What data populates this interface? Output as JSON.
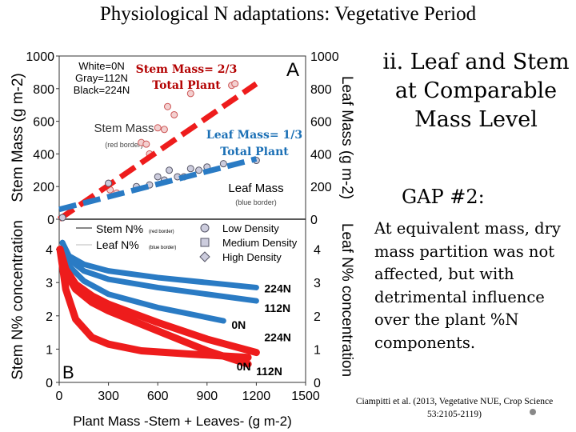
{
  "title": "Physiological N adaptations: Vegetative Period",
  "subtitle": "ii. Leaf and Stem at Comparable Mass Level",
  "gap_label": "GAP #2:",
  "body": "At equivalent mass, dry mass partition was not affected, but with detrimental influence over the plant %N components.",
  "citation": "Ciampitti et al. (2013, Vegetative NUE, Crop Science 53:2105-2119)",
  "colors": {
    "stem": "#ee1c1c",
    "leaf": "#2a7bc4",
    "annot_stem": "#b30000",
    "annot_leaf": "#1a6fb5"
  },
  "chart_data": [
    {
      "type": "scatter",
      "panel_label": "A",
      "xlim": [
        0,
        1500
      ],
      "ylabel": "Stem Mass (g m-2)",
      "ylabel2": "Leaf Mass (g m-2)",
      "ylim": [
        0,
        1000
      ],
      "yticks": [
        0,
        200,
        400,
        600,
        800,
        1000
      ],
      "legend": [
        "White=0N",
        "Gray=112N",
        "Black=224N"
      ],
      "annotations": {
        "stem_text": "Stem Mass",
        "stem_sub": "(red border)",
        "leaf_text": "Leaf Mass",
        "leaf_sub": "(blue border)",
        "stem_frac": "Stem Mass= 2/3",
        "stem_frac2": "Total Plant",
        "leaf_frac": "Leaf Mass= 1/3",
        "leaf_frac2": "Total Plant"
      },
      "series": [
        {
          "name": "Stem Mass",
          "x": [
            0,
            1200
          ],
          "y": [
            0,
            830
          ],
          "points": [
            [
              20,
              10
            ],
            [
              300,
              220
            ],
            [
              310,
              180
            ],
            [
              500,
              470
            ],
            [
              530,
              460
            ],
            [
              600,
              560
            ],
            [
              640,
              550
            ],
            [
              660,
              690
            ],
            [
              700,
              640
            ],
            [
              800,
              770
            ],
            [
              1050,
              820
            ],
            [
              1070,
              830
            ],
            [
              550,
              400
            ],
            [
              350,
              160
            ]
          ]
        },
        {
          "name": "Leaf Mass",
          "x": [
            0,
            1200
          ],
          "y": [
            60,
            370
          ],
          "points": [
            [
              20,
              10
            ],
            [
              300,
              220
            ],
            [
              470,
              200
            ],
            [
              550,
              210
            ],
            [
              600,
              260
            ],
            [
              640,
              240
            ],
            [
              670,
              300
            ],
            [
              720,
              260
            ],
            [
              760,
              260
            ],
            [
              800,
              310
            ],
            [
              850,
              300
            ],
            [
              900,
              320
            ],
            [
              1000,
              340
            ],
            [
              1200,
              360
            ]
          ]
        }
      ]
    },
    {
      "type": "line",
      "panel_label": "B",
      "xlabel": "Plant Mass -Stem + Leaves- (g m-2)",
      "ylabel": "Stem N% concentration",
      "ylabel2": "Leaf N% concentration",
      "xlim": [
        0,
        1500
      ],
      "xticks": [
        0,
        300,
        600,
        900,
        1200,
        1500
      ],
      "ylim": [
        0,
        5
      ],
      "yticks": [
        0,
        1,
        2,
        3,
        4
      ],
      "legend": [
        "Stem N%",
        "Leaf N%",
        "Low Density",
        "Medium Density",
        "High Density"
      ],
      "legend_sub": [
        "(red border)",
        "(blue border)"
      ],
      "series": [
        {
          "name": "224N",
          "group": "leaf",
          "x": [
            20,
            60,
            150,
            300,
            600,
            900,
            1200
          ],
          "y": [
            4.2,
            3.8,
            3.55,
            3.35,
            3.15,
            3.0,
            2.85
          ]
        },
        {
          "name": "112N",
          "group": "leaf",
          "x": [
            20,
            60,
            150,
            300,
            600,
            900,
            1200
          ],
          "y": [
            4.2,
            3.7,
            3.35,
            3.1,
            2.85,
            2.65,
            2.45
          ]
        },
        {
          "name": "0N",
          "group": "leaf",
          "x": [
            20,
            60,
            150,
            300,
            600,
            800,
            1000
          ],
          "y": [
            4.2,
            3.5,
            3.05,
            2.65,
            2.25,
            2.05,
            1.85
          ]
        },
        {
          "name": "224N",
          "group": "stem",
          "x": [
            5,
            40,
            100,
            200,
            300,
            600,
            900,
            1200
          ],
          "y": [
            4.0,
            3.4,
            2.95,
            2.6,
            2.35,
            1.8,
            1.3,
            0.9
          ]
        },
        {
          "name": "112N",
          "group": "stem",
          "x": [
            5,
            40,
            100,
            200,
            300,
            600,
            900,
            1150
          ],
          "y": [
            4.0,
            3.3,
            2.8,
            2.4,
            2.15,
            1.55,
            0.95,
            0.55
          ]
        },
        {
          "name": "0N",
          "group": "stem",
          "x": [
            5,
            40,
            100,
            200,
            300,
            500,
            800,
            1150
          ],
          "y": [
            4.0,
            2.8,
            1.9,
            1.35,
            1.15,
            0.95,
            0.85,
            0.75
          ]
        }
      ]
    }
  ]
}
